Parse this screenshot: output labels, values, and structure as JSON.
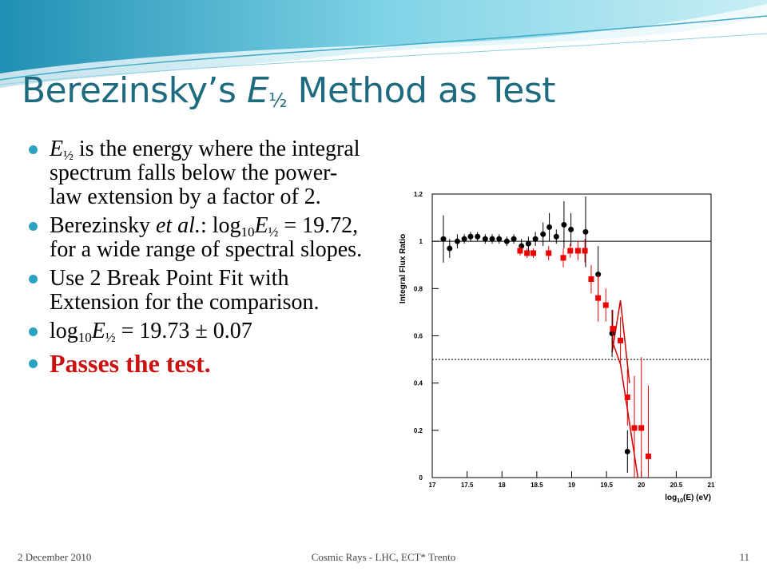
{
  "slide": {
    "title": [
      {
        "text": "Berezinsky’s "
      },
      {
        "text": "E",
        "style": "i"
      },
      {
        "text": "½",
        "style": "sub"
      },
      {
        "text": " Method as Test"
      }
    ],
    "bullets": [
      {
        "segments": [
          {
            "text": "E",
            "style": "i"
          },
          {
            "text": "½",
            "style": "sub"
          },
          {
            "text": "  is the energy where the integral spectrum falls below the power-law extension by a factor of 2."
          }
        ]
      },
      {
        "segments": [
          {
            "text": "Berezinsky "
          },
          {
            "text": "et al.",
            "style": "i"
          },
          {
            "text": ":  log"
          },
          {
            "text": "10",
            "style": "sub"
          },
          {
            "text": "E",
            "style": "i"
          },
          {
            "text": "½",
            "style": "sub"
          },
          {
            "text": " = 19.72, for a wide range of spectral slopes."
          }
        ]
      },
      {
        "segments": [
          {
            "text": "Use 2 Break Point Fit with Extension for the comparison."
          }
        ]
      },
      {
        "segments": [
          {
            "text": "log"
          },
          {
            "text": "10",
            "style": "sub"
          },
          {
            "text": "E",
            "style": "i"
          },
          {
            "text": "½",
            "style": "sub"
          },
          {
            "text": " = 19.73 ± 0.07"
          }
        ]
      },
      {
        "segments": [
          {
            "text": "Passes the test.",
            "style": "b"
          }
        ],
        "color": "#cc1111"
      }
    ],
    "footer": {
      "date": "2 December 2010",
      "center": "Cosmic Rays - LHC, ECT* Trento",
      "page": "11"
    }
  },
  "chart_data": {
    "type": "scatter",
    "ylabel": "Integral Flux Ratio",
    "xlabel": [
      {
        "text": "log"
      },
      {
        "text": "10",
        "style": "sub"
      },
      {
        "text": "(E) (eV)"
      }
    ],
    "xlim": [
      17,
      21
    ],
    "xticks": [
      17,
      17.5,
      18,
      18.5,
      19,
      19.5,
      20,
      20.5,
      21
    ],
    "ylim": [
      0,
      1.2
    ],
    "yticks": [
      0,
      0.2,
      0.4,
      0.6,
      0.8,
      1,
      1.2
    ],
    "reference_lines": [
      {
        "y": 1,
        "style": "solid"
      },
      {
        "y": 0.5,
        "style": "dotted"
      }
    ],
    "series": [
      {
        "color": "#000000",
        "marker": "circle",
        "x": [
          17.16,
          17.25,
          17.36,
          17.46,
          17.55,
          17.65,
          17.76,
          17.86,
          17.96,
          18.07,
          18.17,
          18.28,
          18.38,
          18.48,
          18.59,
          18.68,
          18.78,
          18.89,
          18.99,
          19.2,
          19.38,
          19.58,
          19.8
        ],
        "values": [
          1.01,
          0.97,
          1.0,
          1.01,
          1.02,
          1.02,
          1.01,
          1.01,
          1.01,
          1.0,
          1.01,
          0.98,
          0.99,
          1.01,
          1.03,
          1.06,
          1.02,
          1.07,
          1.05,
          1.04,
          0.86,
          0.61,
          0.11
        ],
        "errors": [
          0.1,
          0.04,
          0.03,
          0.02,
          0.02,
          0.02,
          0.02,
          0.02,
          0.02,
          0.02,
          0.02,
          0.03,
          0.03,
          0.03,
          0.05,
          0.06,
          0.03,
          0.1,
          0.07,
          0.15,
          0.12,
          0.1,
          0.09
        ]
      },
      {
        "color": "#ee0000",
        "marker": "square",
        "x": [
          18.26,
          18.36,
          18.45,
          18.67,
          18.88,
          18.98,
          19.09,
          19.19,
          19.28,
          19.38,
          19.49,
          19.59,
          19.7,
          19.8,
          19.9,
          20.0,
          20.1
        ],
        "values": [
          0.96,
          0.95,
          0.95,
          0.95,
          0.93,
          0.96,
          0.96,
          0.96,
          0.84,
          0.76,
          0.73,
          0.63,
          0.58,
          0.34,
          0.21,
          0.21,
          0.09
        ],
        "errors": [
          0.02,
          0.02,
          0.02,
          0.03,
          0.04,
          0.03,
          0.04,
          0.05,
          0.06,
          0.1,
          0.07,
          0.08,
          0.1,
          0.12,
          0.22,
          0.3,
          0.3
        ]
      }
    ],
    "fit_lines": [
      {
        "color": "#cc0000",
        "x": [
          19.58,
          19.7,
          19.83
        ],
        "values": [
          0.53,
          0.75,
          0.4
        ]
      },
      {
        "color": "#cc0000",
        "x": [
          19.58,
          19.7,
          19.95
        ],
        "values": [
          0.58,
          0.48,
          0.0
        ]
      }
    ]
  }
}
